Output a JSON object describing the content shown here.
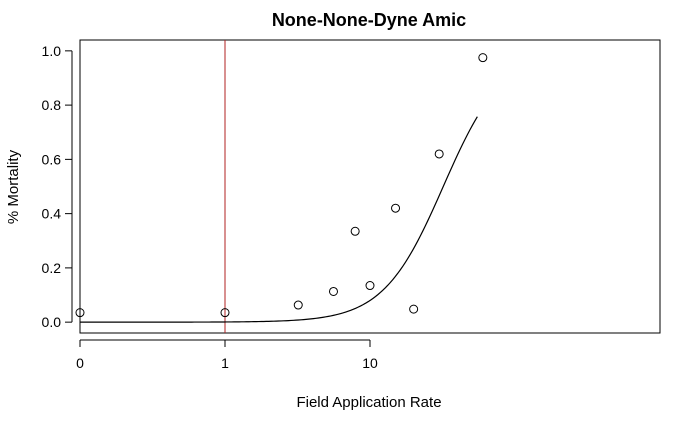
{
  "chart_data": {
    "type": "scatter",
    "title": "None-None-Dyne Amic",
    "xlabel": "Field Application Rate",
    "ylabel": "% Mortality",
    "x_scale": "log10",
    "x_lim": [
      0.1,
      1000
    ],
    "y_lim": [
      -0.04,
      1.04
    ],
    "x_ticks": [
      {
        "value": 0.1,
        "label": "0"
      },
      {
        "value": 1,
        "label": "1"
      },
      {
        "value": 10,
        "label": "10"
      }
    ],
    "y_ticks": [
      {
        "value": 0.0,
        "label": "0.0"
      },
      {
        "value": 0.2,
        "label": "0.2"
      },
      {
        "value": 0.4,
        "label": "0.4"
      },
      {
        "value": 0.6,
        "label": "0.6"
      },
      {
        "value": 0.8,
        "label": "0.8"
      },
      {
        "value": 1.0,
        "label": "1.0"
      }
    ],
    "points": [
      {
        "x": 0.1,
        "y": 0.035
      },
      {
        "x": 1,
        "y": 0.035
      },
      {
        "x": 3.2,
        "y": 0.063
      },
      {
        "x": 5.6,
        "y": 0.113
      },
      {
        "x": 7.9,
        "y": 0.335
      },
      {
        "x": 10,
        "y": 0.135
      },
      {
        "x": 15,
        "y": 0.42
      },
      {
        "x": 20,
        "y": 0.048
      },
      {
        "x": 30,
        "y": 0.62
      },
      {
        "x": 60,
        "y": 0.975
      }
    ],
    "fit_curve": {
      "type": "logistic",
      "ec50": 32,
      "slope": 2.1,
      "x_range": [
        0.1,
        55
      ]
    },
    "reference_line": {
      "x": 1,
      "color": "#b22222"
    },
    "point_color": "#000000",
    "curve_color": "#000000",
    "grid": false,
    "legend": "none"
  }
}
